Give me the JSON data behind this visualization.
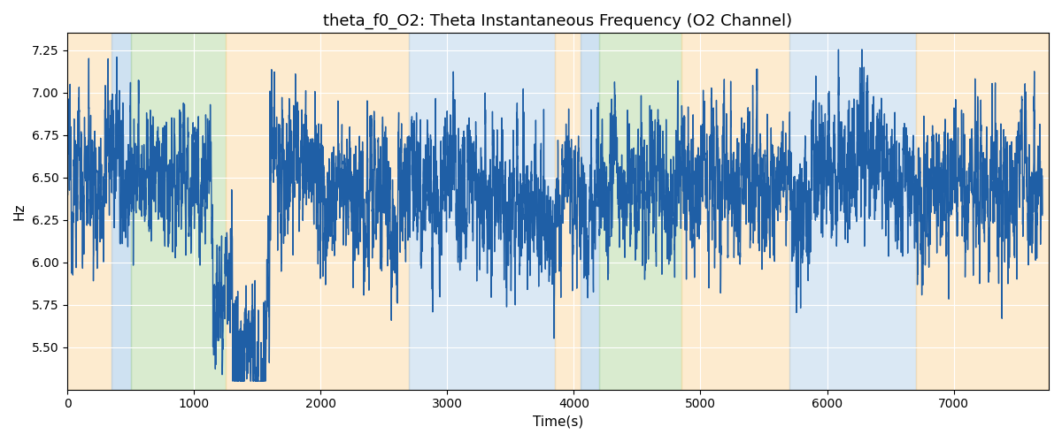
{
  "title": "theta_f0_O2: Theta Instantaneous Frequency (O2 Channel)",
  "xlabel": "Time(s)",
  "ylabel": "Hz",
  "ylim": [
    5.25,
    7.35
  ],
  "xlim": [
    0,
    7750
  ],
  "bg_regions": [
    {
      "xmin": 0,
      "xmax": 350,
      "color": "#fdd9a0",
      "alpha": 0.5
    },
    {
      "xmin": 350,
      "xmax": 500,
      "color": "#aecde8",
      "alpha": 0.6
    },
    {
      "xmin": 500,
      "xmax": 1250,
      "color": "#b5d9a0",
      "alpha": 0.5
    },
    {
      "xmin": 1250,
      "xmax": 2700,
      "color": "#fdd9a0",
      "alpha": 0.5
    },
    {
      "xmin": 2700,
      "xmax": 3850,
      "color": "#aecde8",
      "alpha": 0.45
    },
    {
      "xmin": 3850,
      "xmax": 4050,
      "color": "#fdd9a0",
      "alpha": 0.5
    },
    {
      "xmin": 4050,
      "xmax": 4200,
      "color": "#aecde8",
      "alpha": 0.6
    },
    {
      "xmin": 4200,
      "xmax": 4850,
      "color": "#b5d9a0",
      "alpha": 0.5
    },
    {
      "xmin": 4850,
      "xmax": 5700,
      "color": "#fdd9a0",
      "alpha": 0.5
    },
    {
      "xmin": 5700,
      "xmax": 6700,
      "color": "#aecde8",
      "alpha": 0.45
    },
    {
      "xmin": 6700,
      "xmax": 7750,
      "color": "#fdd9a0",
      "alpha": 0.5
    }
  ],
  "line_color": "#1f5fa6",
  "line_width": 1.0,
  "grid_color": "white",
  "grid_linewidth": 0.8,
  "title_fontsize": 13,
  "axis_fontsize": 11,
  "tick_fontsize": 10,
  "base_freq": 6.45,
  "t_start": 0,
  "t_end": 7700,
  "n_points": 7700
}
